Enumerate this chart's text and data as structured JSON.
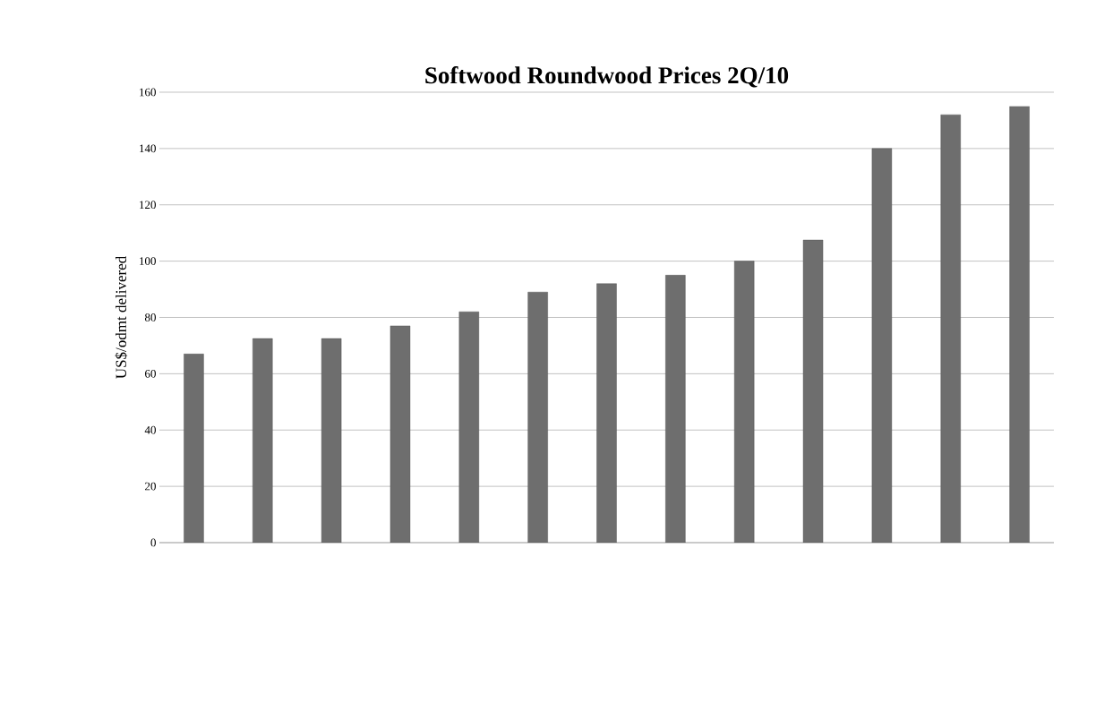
{
  "chart_data": {
    "type": "bar",
    "title": "Softwood Roundwood Prices 2Q/10",
    "ylabel": "US$/odmt delivered",
    "categories": [
      null,
      null,
      null,
      null,
      null,
      null,
      null,
      null,
      null,
      null,
      null,
      null,
      null
    ],
    "values": [
      67,
      72.5,
      72.5,
      77,
      82,
      89,
      92,
      95,
      100,
      107.5,
      140,
      152,
      155
    ],
    "color": "#6e6e6e",
    "ylim": [
      0,
      160
    ],
    "yticks": [
      0,
      20,
      40,
      60,
      80,
      100,
      120,
      140,
      160
    ],
    "grid": "y",
    "tick_labels": "y"
  }
}
